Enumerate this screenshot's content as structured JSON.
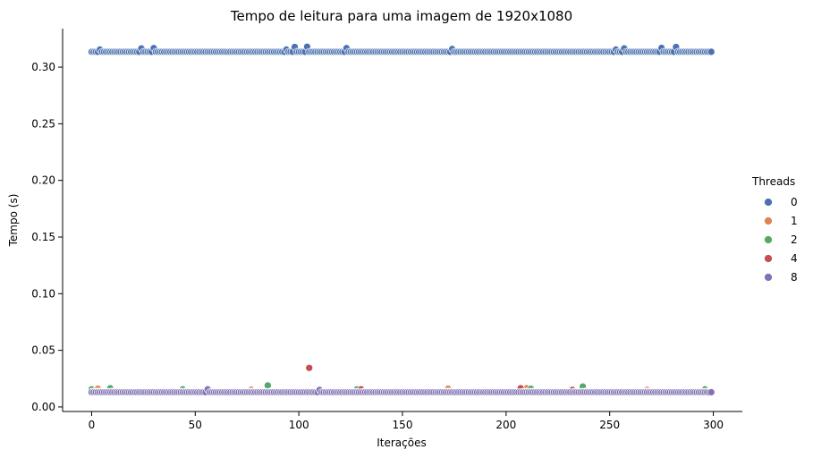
{
  "chart_data": {
    "type": "scatter",
    "title": "Tempo de leitura para uma imagem de 1920x1080",
    "xlabel": "Iterações",
    "ylabel": "Tempo (s)",
    "xlim": [
      -14,
      314
    ],
    "ylim": [
      -0.004,
      0.334
    ],
    "x_ticks": [
      0,
      50,
      100,
      150,
      200,
      250,
      300
    ],
    "y_ticks": [
      0.0,
      0.05,
      0.1,
      0.15,
      0.2,
      0.25,
      0.3
    ],
    "x_tick_labels": [
      "0",
      "50",
      "100",
      "150",
      "200",
      "250",
      "300"
    ],
    "y_tick_labels": [
      "0.00",
      "0.05",
      "0.10",
      "0.15",
      "0.20",
      "0.25",
      "0.30"
    ],
    "grid": false,
    "legend": {
      "title": "Threads",
      "placement": "right"
    },
    "iterations": {
      "start": 0,
      "end": 299
    },
    "series": [
      {
        "name": "0",
        "color": "#4c72b0",
        "base": 0.3135,
        "outliers": [
          [
            4,
            0.3155
          ],
          [
            24,
            0.3165
          ],
          [
            30,
            0.3168
          ],
          [
            94,
            0.3155
          ],
          [
            98,
            0.3178
          ],
          [
            104,
            0.318
          ],
          [
            123,
            0.3168
          ],
          [
            174,
            0.316
          ],
          [
            253,
            0.3155
          ],
          [
            257,
            0.3165
          ],
          [
            275,
            0.317
          ],
          [
            282,
            0.3178
          ]
        ]
      },
      {
        "name": "1",
        "color": "#dd8452",
        "base": 0.0132,
        "outliers": [
          [
            3,
            0.016
          ],
          [
            77,
            0.0152
          ],
          [
            172,
            0.016
          ],
          [
            210,
            0.0165
          ],
          [
            268,
            0.015
          ]
        ]
      },
      {
        "name": "2",
        "color": "#55a868",
        "base": 0.0135,
        "outliers": [
          [
            0,
            0.0155
          ],
          [
            9,
            0.0165
          ],
          [
            44,
            0.0155
          ],
          [
            85,
            0.019
          ],
          [
            128,
            0.0155
          ],
          [
            212,
            0.016
          ],
          [
            237,
            0.018
          ],
          [
            296,
            0.0155
          ]
        ]
      },
      {
        "name": "4",
        "color": "#c44e52",
        "base": 0.0133,
        "outliers": [
          [
            105,
            0.0345
          ],
          [
            130,
            0.0155
          ],
          [
            207,
            0.0165
          ],
          [
            232,
            0.015
          ]
        ]
      },
      {
        "name": "8",
        "color": "#8172b3",
        "base": 0.013,
        "outliers": [
          [
            56,
            0.0155
          ],
          [
            110,
            0.015
          ],
          [
            298,
            0.0128
          ]
        ]
      }
    ]
  }
}
